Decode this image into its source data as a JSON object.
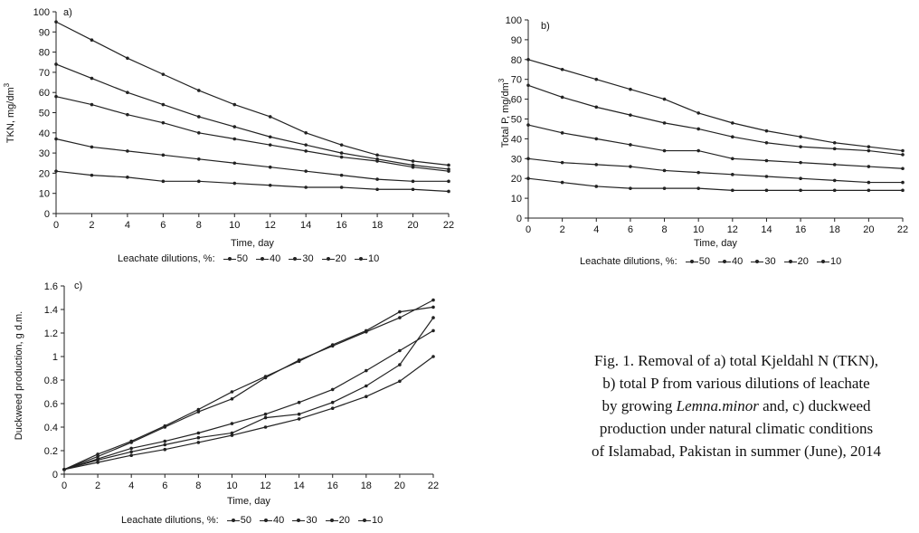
{
  "chart_data": [
    {
      "panel": "a)",
      "type": "line",
      "xlabel": "Time, day",
      "ylabel": "TKN, mg/dm",
      "ylabel_sup": "3",
      "x": [
        0,
        2,
        4,
        6,
        8,
        10,
        12,
        14,
        16,
        18,
        20,
        22
      ],
      "xlim": [
        0,
        22
      ],
      "ylim": [
        0,
        100
      ],
      "yticks": [
        0,
        10,
        20,
        30,
        40,
        50,
        60,
        70,
        80,
        90,
        100
      ],
      "xticks": [
        0,
        2,
        4,
        6,
        8,
        10,
        12,
        14,
        16,
        18,
        20,
        22
      ],
      "legend_prefix": "Leachate dilutions, %:",
      "series": [
        {
          "name": "50",
          "values": [
            95,
            86,
            77,
            69,
            61,
            54,
            48,
            40,
            34,
            29,
            26,
            24
          ]
        },
        {
          "name": "40",
          "values": [
            74,
            67,
            60,
            54,
            48,
            43,
            38,
            34,
            30,
            27,
            24,
            22
          ]
        },
        {
          "name": "30",
          "values": [
            58,
            54,
            49,
            45,
            40,
            37,
            34,
            31,
            28,
            26,
            23,
            21
          ]
        },
        {
          "name": "20",
          "values": [
            37,
            33,
            31,
            29,
            27,
            25,
            23,
            21,
            19,
            17,
            16,
            16
          ]
        },
        {
          "name": "10",
          "values": [
            21,
            19,
            18,
            16,
            16,
            15,
            14,
            13,
            13,
            12,
            12,
            11
          ]
        }
      ]
    },
    {
      "panel": "b)",
      "type": "line",
      "xlabel": "Time, day",
      "ylabel": "Total P, mg/dm",
      "ylabel_sup": "3",
      "x": [
        0,
        2,
        4,
        6,
        8,
        10,
        12,
        14,
        16,
        18,
        20,
        22
      ],
      "xlim": [
        0,
        22
      ],
      "ylim": [
        0,
        100
      ],
      "yticks": [
        0,
        10,
        20,
        30,
        40,
        50,
        60,
        70,
        80,
        90,
        100
      ],
      "xticks": [
        0,
        2,
        4,
        6,
        8,
        10,
        12,
        14,
        16,
        18,
        20,
        22
      ],
      "legend_prefix": "Leachate dilutions, %:",
      "series": [
        {
          "name": "50",
          "values": [
            80,
            75,
            70,
            65,
            60,
            53,
            48,
            44,
            41,
            38,
            36,
            34
          ]
        },
        {
          "name": "40",
          "values": [
            67,
            61,
            56,
            52,
            48,
            45,
            41,
            38,
            36,
            35,
            34,
            32
          ]
        },
        {
          "name": "30",
          "values": [
            47,
            43,
            40,
            37,
            34,
            34,
            30,
            29,
            28,
            27,
            26,
            25
          ]
        },
        {
          "name": "20",
          "values": [
            30,
            28,
            27,
            26,
            24,
            23,
            22,
            21,
            20,
            19,
            18,
            18
          ]
        },
        {
          "name": "10",
          "values": [
            20,
            18,
            16,
            15,
            15,
            15,
            14,
            14,
            14,
            14,
            14,
            14
          ]
        }
      ]
    },
    {
      "panel": "c)",
      "type": "line",
      "xlabel": "Time, day",
      "ylabel": "Duckweed production, g d.m.",
      "x": [
        0,
        2,
        4,
        6,
        8,
        10,
        12,
        14,
        16,
        18,
        20,
        22
      ],
      "xlim": [
        0,
        22
      ],
      "ylim": [
        0,
        1.6
      ],
      "yticks": [
        0,
        0.2,
        0.4,
        0.6,
        0.8,
        1,
        1.2,
        1.4,
        1.6
      ],
      "xticks": [
        0,
        2,
        4,
        6,
        8,
        10,
        12,
        14,
        16,
        18,
        20,
        22
      ],
      "legend_prefix": "Leachate dilutions, %:",
      "series": [
        {
          "name": "50",
          "values": [
            0.04,
            0.17,
            0.28,
            0.41,
            0.55,
            0.7,
            0.83,
            0.96,
            1.1,
            1.22,
            1.38,
            1.42
          ]
        },
        {
          "name": "40",
          "values": [
            0.04,
            0.15,
            0.27,
            0.4,
            0.53,
            0.64,
            0.82,
            0.97,
            1.09,
            1.21,
            1.33,
            1.48
          ]
        },
        {
          "name": "30",
          "values": [
            0.04,
            0.13,
            0.22,
            0.28,
            0.35,
            0.43,
            0.51,
            0.61,
            0.72,
            0.88,
            1.05,
            1.22
          ]
        },
        {
          "name": "20",
          "values": [
            0.04,
            0.12,
            0.19,
            0.25,
            0.31,
            0.35,
            0.48,
            0.51,
            0.61,
            0.75,
            0.93,
            1.33
          ]
        },
        {
          "name": "10",
          "values": [
            0.04,
            0.1,
            0.16,
            0.21,
            0.27,
            0.33,
            0.4,
            0.47,
            0.56,
            0.66,
            0.79,
            1.0
          ]
        }
      ]
    }
  ],
  "caption": {
    "line1": "Fig. 1. Removal of a) total Kjeldahl N (TKN),",
    "line2": "b) total P from various dilutions of leachate",
    "line3_pre": "by growing ",
    "line3_italic": "Lemna.minor",
    "line3_post": " and, c) duckweed",
    "line4": "production under natural climatic conditions",
    "line5": "of Islamabad, Pakistan in summer (June), 2014"
  }
}
